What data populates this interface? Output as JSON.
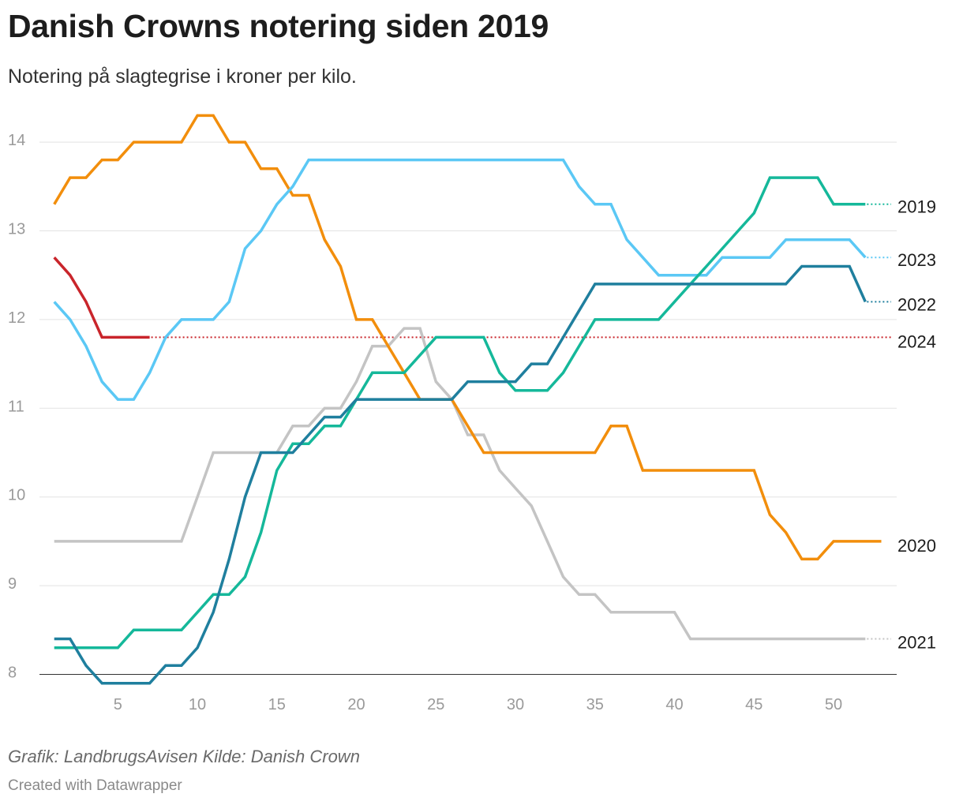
{
  "title": "Danish Crowns notering siden 2019",
  "subtitle": "Notering på slagtegrise i kroner per kilo.",
  "footer": {
    "source": "Grafik: LandbrugsAvisen Kilde: Danish Crown",
    "credit": "Created with Datawrapper"
  },
  "chart_data": {
    "type": "line",
    "title": "Danish Crowns notering siden 2019",
    "xlabel": "",
    "ylabel": "",
    "xlim": [
      1,
      53
    ],
    "ylim": [
      8,
      14.3
    ],
    "x_ticks": [
      5,
      10,
      15,
      20,
      25,
      30,
      35,
      40,
      45,
      50
    ],
    "y_ticks": [
      8,
      9,
      10,
      11,
      12,
      13,
      14
    ],
    "grid": true,
    "series": [
      {
        "name": "2019",
        "color": "#15b89a",
        "x_start": 1,
        "values": [
          8.3,
          8.3,
          8.3,
          8.3,
          8.3,
          8.5,
          8.5,
          8.5,
          8.5,
          8.7,
          8.9,
          8.9,
          9.1,
          9.6,
          10.3,
          10.6,
          10.6,
          10.8,
          10.8,
          11.1,
          11.4,
          11.4,
          11.4,
          11.6,
          11.8,
          11.8,
          11.8,
          11.8,
          11.4,
          11.2,
          11.2,
          11.2,
          11.4,
          11.7,
          12.0,
          12.0,
          12.0,
          12.0,
          12.0,
          12.2,
          12.4,
          12.6,
          12.8,
          13.0,
          13.2,
          13.6,
          13.6,
          13.6,
          13.6,
          13.3,
          13.3,
          13.3
        ],
        "end_label": "2019",
        "label_value": 13.27,
        "dotted_extension": true
      },
      {
        "name": "2020",
        "color": "#f28e0c",
        "x_start": 1,
        "values": [
          13.3,
          13.6,
          13.6,
          13.8,
          13.8,
          14.0,
          14.0,
          14.0,
          14.0,
          14.3,
          14.3,
          14.0,
          14.0,
          13.7,
          13.7,
          13.4,
          13.4,
          12.9,
          12.6,
          12.0,
          12.0,
          11.7,
          11.4,
          11.1,
          11.1,
          11.1,
          10.8,
          10.5,
          10.5,
          10.5,
          10.5,
          10.5,
          10.5,
          10.5,
          10.5,
          10.8,
          10.8,
          10.3,
          10.3,
          10.3,
          10.3,
          10.3,
          10.3,
          10.3,
          10.3,
          9.8,
          9.6,
          9.3,
          9.3,
          9.5,
          9.5,
          9.5,
          9.5
        ],
        "end_label": "2020",
        "label_value": 9.45,
        "dotted_extension": false
      },
      {
        "name": "2021",
        "color": "#c4c4c4",
        "x_start": 1,
        "values": [
          9.5,
          9.5,
          9.5,
          9.5,
          9.5,
          9.5,
          9.5,
          9.5,
          9.5,
          10.0,
          10.5,
          10.5,
          10.5,
          10.5,
          10.5,
          10.8,
          10.8,
          11.0,
          11.0,
          11.3,
          11.7,
          11.7,
          11.9,
          11.9,
          11.3,
          11.1,
          10.7,
          10.7,
          10.3,
          10.1,
          9.9,
          9.5,
          9.1,
          8.9,
          8.9,
          8.7,
          8.7,
          8.7,
          8.7,
          8.7,
          8.4,
          8.4,
          8.4,
          8.4,
          8.4,
          8.4,
          8.4,
          8.4,
          8.4,
          8.4,
          8.4,
          8.4
        ],
        "end_label": "2021",
        "label_value": 8.36,
        "dotted_extension": true
      },
      {
        "name": "2022",
        "color": "#1f7f9e",
        "x_start": 1,
        "values": [
          8.4,
          8.4,
          8.1,
          7.9,
          7.9,
          7.9,
          7.9,
          8.1,
          8.1,
          8.3,
          8.7,
          9.3,
          10.0,
          10.5,
          10.5,
          10.5,
          10.7,
          10.9,
          10.9,
          11.1,
          11.1,
          11.1,
          11.1,
          11.1,
          11.1,
          11.1,
          11.3,
          11.3,
          11.3,
          11.3,
          11.5,
          11.5,
          11.8,
          12.1,
          12.4,
          12.4,
          12.4,
          12.4,
          12.4,
          12.4,
          12.4,
          12.4,
          12.4,
          12.4,
          12.4,
          12.4,
          12.4,
          12.6,
          12.6,
          12.6,
          12.6,
          12.2
        ],
        "end_label": "2022",
        "label_value": 12.17,
        "dotted_extension": true
      },
      {
        "name": "2023",
        "color": "#5bc8f5",
        "x_start": 1,
        "values": [
          12.2,
          12.0,
          11.7,
          11.3,
          11.1,
          11.1,
          11.4,
          11.8,
          12.0,
          12.0,
          12.0,
          12.2,
          12.8,
          13.0,
          13.3,
          13.5,
          13.8,
          13.8,
          13.8,
          13.8,
          13.8,
          13.8,
          13.8,
          13.8,
          13.8,
          13.8,
          13.8,
          13.8,
          13.8,
          13.8,
          13.8,
          13.8,
          13.8,
          13.5,
          13.3,
          13.3,
          12.9,
          12.7,
          12.5,
          12.5,
          12.5,
          12.5,
          12.7,
          12.7,
          12.7,
          12.7,
          12.9,
          12.9,
          12.9,
          12.9,
          12.9,
          12.7
        ],
        "end_label": "2023",
        "label_value": 12.67,
        "dotted_extension": true
      },
      {
        "name": "2024",
        "color": "#c9252b",
        "x_start": 1,
        "values": [
          12.7,
          12.5,
          12.2,
          11.8,
          11.8,
          11.8,
          11.8
        ],
        "end_label": "2024",
        "label_value": 11.75,
        "dotted_extension": true
      }
    ]
  }
}
